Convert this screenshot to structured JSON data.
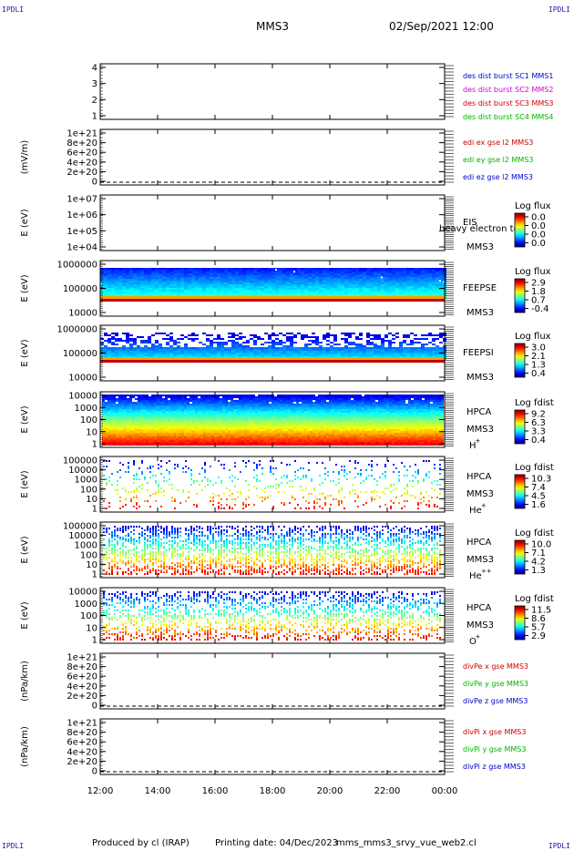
{
  "corner_label": "IPDLI",
  "header": {
    "spacecraft": "MMS3",
    "datetime": "02/Sep/2021 12:00"
  },
  "footer": {
    "producer": "Produced by cl (IRAP)",
    "printing_date": "Printing date: 04/Dec/2023",
    "script": "mms_mms3_srvy_vue_web2.cl"
  },
  "time_axis": [
    "12:00",
    "14:00",
    "16:00",
    "18:00",
    "20:00",
    "22:00",
    "00:00"
  ],
  "chart_data": [
    {
      "id": "burst",
      "type": "line",
      "yticks": [
        "4",
        "3",
        "2",
        "1"
      ],
      "legend": [
        {
          "text": "des dist burst SC1 MMS1",
          "color": "#0000c8"
        },
        {
          "text": "des dist burst SC2 MMS2",
          "color": "#d000d0"
        },
        {
          "text": "des dist burst SC3 MMS3",
          "color": "#d00000"
        },
        {
          "text": "des dist burst SC4 MMS4",
          "color": "#00b400"
        }
      ]
    },
    {
      "id": "edi",
      "type": "line",
      "ylabel": "(mV/m)",
      "yticks": [
        "1e+21",
        "8e+20",
        "6e+20",
        "4e+20",
        "2e+20",
        "0"
      ],
      "legend": [
        {
          "text": "edi ex gse l2 MMS3",
          "color": "#d00000"
        },
        {
          "text": "edi ey gse l2 MMS3",
          "color": "#00b400"
        },
        {
          "text": "edi ez gse l2 MMS3",
          "color": "#0000c8"
        }
      ]
    },
    {
      "id": "eis",
      "type": "heatmap",
      "ylabel": "E (eV)",
      "yticks": [
        "1e+07",
        "1e+06",
        "1e+05",
        "1e+04"
      ],
      "instrument": "EIS",
      "spacecraft": "MMS3",
      "overlay_text": "heavy electron to",
      "cb_title": "Log flux",
      "cb_ticks": [
        "0.0",
        "0.0",
        "0.0",
        "0.0"
      ]
    },
    {
      "id": "feepse",
      "type": "heatmap",
      "ylabel": "E (eV)",
      "yticks": [
        "1000000",
        "100000",
        "10000"
      ],
      "instrument": "FEEPSE",
      "spacecraft": "MMS3",
      "cb_title": "Log flux",
      "cb_ticks": [
        "2.9",
        "1.8",
        "0.7",
        "-0.4"
      ]
    },
    {
      "id": "feepsi",
      "type": "heatmap",
      "ylabel": "E (eV)",
      "yticks": [
        "1000000",
        "100000",
        "10000"
      ],
      "instrument": "FEEPSI",
      "spacecraft": "MMS3",
      "cb_title": "Log flux",
      "cb_ticks": [
        "3.0",
        "2.1",
        "1.3",
        "0.4"
      ]
    },
    {
      "id": "hpca_h",
      "type": "heatmap",
      "ylabel": "E (eV)",
      "yticks": [
        "10000",
        "1000",
        "100",
        "10",
        "1"
      ],
      "instrument": "HPCA",
      "spacecraft": "MMS3",
      "species": "H",
      "charge": "+",
      "cb_title": "Log fdist",
      "cb_ticks": [
        "9.2",
        "6.3",
        "3.3",
        "0.4"
      ]
    },
    {
      "id": "hpca_he",
      "type": "heatmap",
      "ylabel": "E (eV)",
      "yticks": [
        "100000",
        "10000",
        "1000",
        "100",
        "10",
        "1"
      ],
      "instrument": "HPCA",
      "spacecraft": "MMS3",
      "species": "He",
      "charge": "+",
      "cb_title": "Log fdist",
      "cb_ticks": [
        "10.3",
        "7.4",
        "4.5",
        "1.6"
      ]
    },
    {
      "id": "hpca_hepp",
      "type": "heatmap",
      "ylabel": "E (eV)",
      "yticks": [
        "100000",
        "10000",
        "1000",
        "100",
        "10",
        "1"
      ],
      "instrument": "HPCA",
      "spacecraft": "MMS3",
      "species": "He",
      "charge": "++",
      "cb_title": "Log fdist",
      "cb_ticks": [
        "10.0",
        "7.1",
        "4.2",
        "1.3"
      ]
    },
    {
      "id": "hpca_o",
      "type": "heatmap",
      "ylabel": "E (eV)",
      "yticks": [
        "10000",
        "1000",
        "100",
        "10",
        "1"
      ],
      "instrument": "HPCA",
      "spacecraft": "MMS3",
      "species": "O",
      "charge": "+",
      "cb_title": "Log fdist",
      "cb_ticks": [
        "11.5",
        "8.6",
        "5.7",
        "2.9"
      ]
    },
    {
      "id": "divpe",
      "type": "line",
      "ylabel": "(nPa/km)",
      "yticks": [
        "1e+21",
        "8e+20",
        "6e+20",
        "4e+20",
        "2e+20",
        "0"
      ],
      "legend": [
        {
          "text": "divPe x gse MMS3",
          "color": "#d00000"
        },
        {
          "text": "divPe y gse MMS3",
          "color": "#00b400"
        },
        {
          "text": "divPe z gse MMS3",
          "color": "#0000c8"
        }
      ]
    },
    {
      "id": "divpi",
      "type": "line",
      "ylabel": "(nPa/km)",
      "yticks": [
        "1e+21",
        "8e+20",
        "6e+20",
        "4e+20",
        "2e+20",
        "0"
      ],
      "legend": [
        {
          "text": "divPi x gse MMS3",
          "color": "#d00000"
        },
        {
          "text": "divPi y gse MMS3",
          "color": "#00b400"
        },
        {
          "text": "divPi z gse MMS3",
          "color": "#0000c8"
        }
      ]
    }
  ]
}
